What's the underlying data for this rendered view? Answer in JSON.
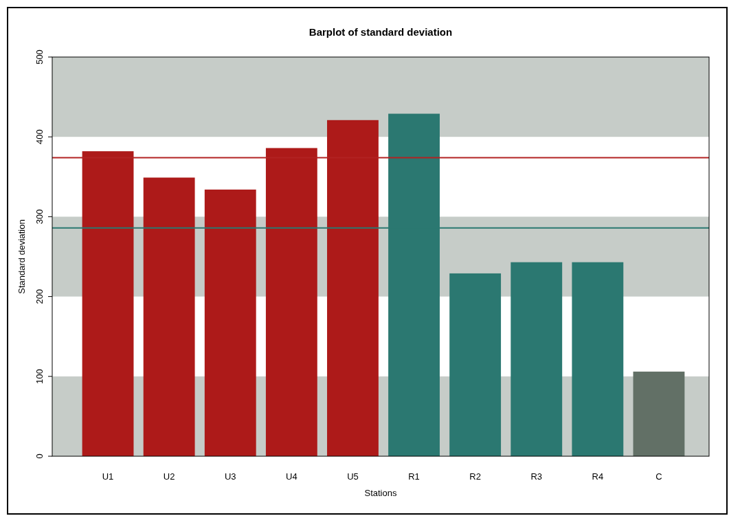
{
  "chart_data": {
    "type": "bar",
    "title": "Barplot of standard deviation",
    "xlabel": "Stations",
    "ylabel": "Standard deviation",
    "categories": [
      "U1",
      "U2",
      "U3",
      "U4",
      "U5",
      "R1",
      "R2",
      "R3",
      "R4",
      "C"
    ],
    "values": [
      382,
      349,
      334,
      386,
      421,
      429,
      229,
      243,
      243,
      106
    ],
    "colors": [
      "#ad1a19",
      "#ad1a19",
      "#ad1a19",
      "#ad1a19",
      "#ad1a19",
      "#2b7871",
      "#2b7871",
      "#2b7871",
      "#2b7871",
      "#627066"
    ],
    "ylim": [
      0,
      500
    ],
    "yticks": [
      0,
      100,
      200,
      300,
      400,
      500
    ],
    "bands": [
      {
        "axis": "y",
        "from": 0,
        "to": 100,
        "color": "#c6ccc8"
      },
      {
        "axis": "y",
        "from": 200,
        "to": 300,
        "color": "#c6ccc8"
      },
      {
        "axis": "y",
        "from": 400,
        "to": 500,
        "color": "#c6ccc8"
      }
    ],
    "ref_lines": [
      {
        "axis": "y",
        "value": 374,
        "color": "#b22222"
      },
      {
        "axis": "y",
        "value": 286,
        "color": "#2b7871"
      }
    ]
  }
}
